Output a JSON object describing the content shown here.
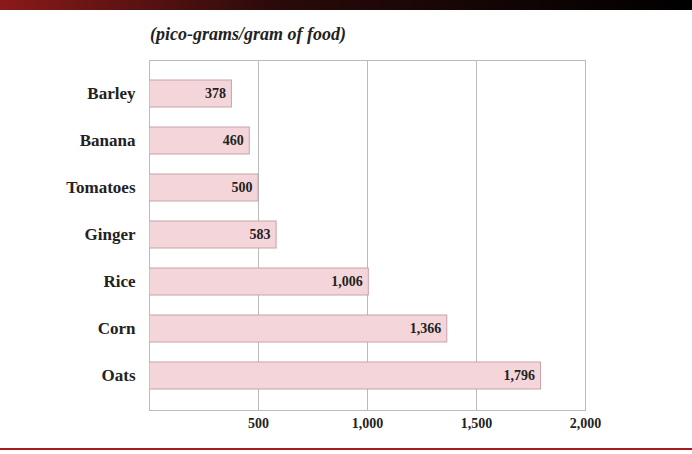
{
  "chart_data": {
    "type": "bar",
    "title": "(pico-grams/gram of food)",
    "categories": [
      "Barley",
      "Banana",
      "Tomatoes",
      "Ginger",
      "Rice",
      "Corn",
      "Oats"
    ],
    "values": [
      378,
      460,
      500,
      583,
      1006,
      1366,
      1796
    ],
    "value_labels": [
      "378",
      "460",
      "500",
      "583",
      "1,006",
      "1,366",
      "1,796"
    ],
    "color": "#f4d6da",
    "orientation": "horizontal",
    "data_labels": true,
    "grid": true,
    "xlim": [
      0,
      2000
    ],
    "xticks": [
      500,
      1000,
      1500,
      2000
    ]
  }
}
